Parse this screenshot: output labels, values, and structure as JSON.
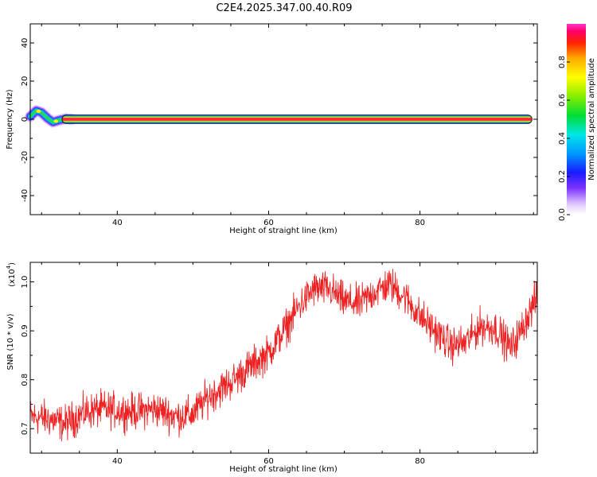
{
  "title": "C2E4.2025.347.00.40.R09",
  "chart_data": [
    {
      "type": "heatmap",
      "name": "spectrogram",
      "xlabel": "Height of straight line (km)",
      "ylabel": "Frequency (Hz)",
      "xlim": [
        28.5,
        95.5
      ],
      "ylim": [
        -50,
        50
      ],
      "xticks": [
        40,
        60,
        80
      ],
      "xtick_labels": [
        "40",
        "60",
        "80"
      ],
      "yticks": [
        -40,
        -20,
        0,
        20,
        40
      ],
      "ytick_labels": [
        "-40",
        "-20",
        "0",
        "20",
        "40"
      ],
      "band": {
        "x_start": 28.5,
        "x_end": 94.8,
        "center_hz": 0,
        "halfwidth_hz": 1.8
      },
      "early_segment": [
        [
          28.5,
          1.5
        ],
        [
          29.3,
          4.5
        ],
        [
          30.0,
          3.5
        ],
        [
          30.8,
          0.5
        ],
        [
          31.5,
          -1.5
        ],
        [
          32.3,
          -0.5
        ],
        [
          33.2,
          0.3
        ],
        [
          34.0,
          0.0
        ]
      ],
      "colorbar": {
        "label": "Normalized spectral amplitude",
        "range": [
          0,
          1
        ],
        "ticks": [
          0.0,
          0.2,
          0.4,
          0.6,
          0.8
        ],
        "tick_labels": [
          "0.0",
          "0.2",
          "0.4",
          "0.6",
          "0.8"
        ]
      }
    },
    {
      "type": "line",
      "name": "snr",
      "xlabel": "Height of straight line (km)",
      "ylabel": "SNR (10 * v/v)",
      "scale_note": "(x10",
      "scale_exp": "4",
      "scale_close": ")",
      "xlim": [
        28.5,
        95.5
      ],
      "ylim": [
        0.65,
        1.04
      ],
      "xticks": [
        40,
        60,
        80
      ],
      "xtick_labels": [
        "40",
        "60",
        "80"
      ],
      "yticks": [
        0.7,
        0.8,
        0.9,
        1.0
      ],
      "ytick_labels": [
        "0.7",
        "0.8",
        "0.9",
        "1.0"
      ],
      "color": "#ee2222",
      "noise_amplitude": 0.018,
      "trend": [
        [
          28.5,
          0.725
        ],
        [
          31,
          0.72
        ],
        [
          33,
          0.71
        ],
        [
          36,
          0.735
        ],
        [
          38,
          0.74
        ],
        [
          42,
          0.735
        ],
        [
          45,
          0.74
        ],
        [
          48,
          0.725
        ],
        [
          50,
          0.73
        ],
        [
          52,
          0.765
        ],
        [
          55,
          0.795
        ],
        [
          57,
          0.82
        ],
        [
          60,
          0.855
        ],
        [
          62,
          0.9
        ],
        [
          64,
          0.95
        ],
        [
          66,
          0.985
        ],
        [
          68,
          0.985
        ],
        [
          70,
          0.96
        ],
        [
          72,
          0.955
        ],
        [
          74,
          0.98
        ],
        [
          76,
          0.995
        ],
        [
          78,
          0.97
        ],
        [
          80,
          0.93
        ],
        [
          82,
          0.9
        ],
        [
          84,
          0.87
        ],
        [
          86,
          0.875
        ],
        [
          88,
          0.91
        ],
        [
          90,
          0.905
        ],
        [
          92,
          0.865
        ],
        [
          93,
          0.89
        ],
        [
          95.5,
          0.97
        ]
      ]
    }
  ]
}
